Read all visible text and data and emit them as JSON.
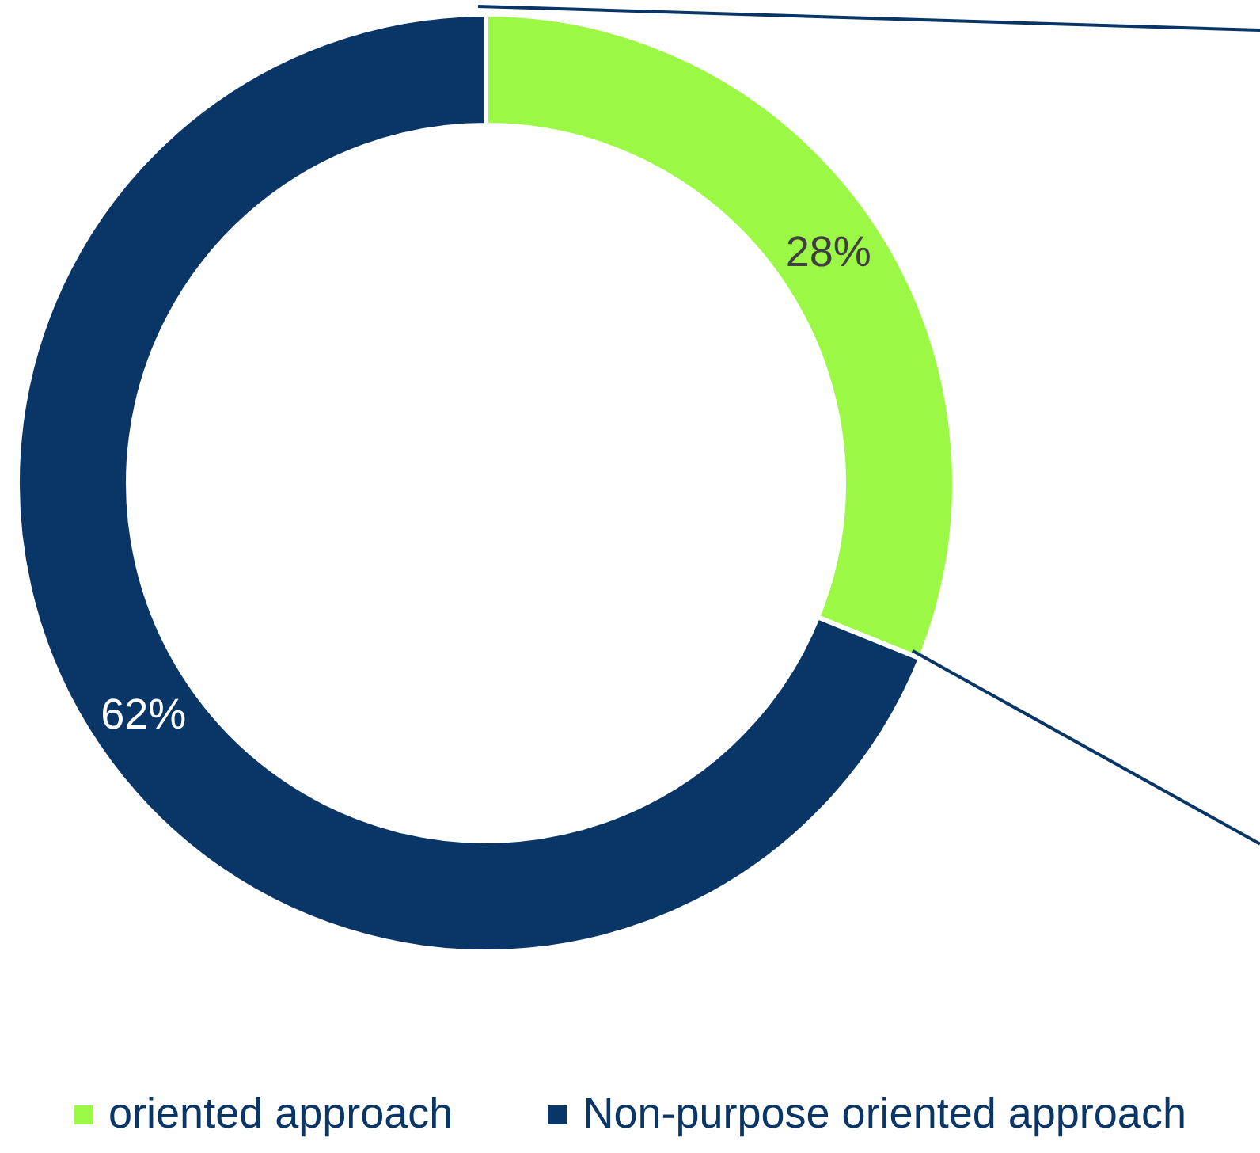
{
  "chart_data": {
    "type": "donut",
    "categories": [
      "oriented approach",
      "Non-purpose oriented approach"
    ],
    "values": [
      28,
      62
    ],
    "colors": [
      "#9bf945",
      "#0a3567"
    ],
    "value_labels": [
      "28%",
      "62%"
    ],
    "legend": "bottom"
  }
}
